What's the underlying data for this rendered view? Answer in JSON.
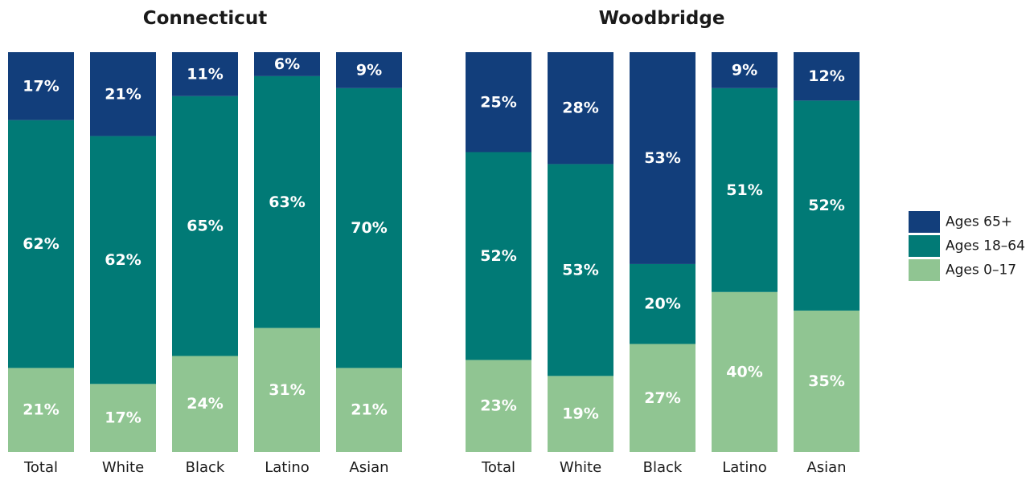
{
  "colors": {
    "ages_65_plus": "#123e7b",
    "ages_18_64": "#017a76",
    "ages_0_17": "#90c592"
  },
  "chart_data": [
    {
      "type": "bar",
      "stacked": true,
      "title": "Connecticut",
      "categories": [
        "Total",
        "White",
        "Black",
        "Latino",
        "Asian"
      ],
      "series": [
        {
          "name": "Ages 0–17",
          "values": [
            21,
            17,
            24,
            31,
            21
          ],
          "labels": [
            "21%",
            "17%",
            "24%",
            "31%",
            "21%"
          ]
        },
        {
          "name": "Ages 18–64",
          "values": [
            62,
            62,
            65,
            63,
            70
          ],
          "labels": [
            "62%",
            "62%",
            "65%",
            "63%",
            "70%"
          ]
        },
        {
          "name": "Ages 65+",
          "values": [
            17,
            21,
            11,
            6,
            9
          ],
          "labels": [
            "17%",
            "21%",
            "11%",
            "6%",
            "9%"
          ]
        }
      ],
      "ylim": [
        0,
        100
      ]
    },
    {
      "type": "bar",
      "stacked": true,
      "title": "Woodbridge",
      "categories": [
        "Total",
        "White",
        "Black",
        "Latino",
        "Asian"
      ],
      "series": [
        {
          "name": "Ages 0–17",
          "values": [
            23,
            19,
            27,
            40,
            35
          ],
          "labels": [
            "23%",
            "19%",
            "27%",
            "40%",
            "35%"
          ]
        },
        {
          "name": "Ages 18–64",
          "values": [
            52,
            53,
            20,
            51,
            52
          ],
          "labels": [
            "52%",
            "53%",
            "20%",
            "51%",
            "52%"
          ]
        },
        {
          "name": "Ages 65+",
          "values": [
            25,
            28,
            53,
            9,
            12
          ],
          "labels": [
            "25%",
            "28%",
            "53%",
            "9%",
            "12%"
          ]
        }
      ],
      "ylim": [
        0,
        100
      ]
    }
  ],
  "legend": {
    "position": "right",
    "items": [
      {
        "label": "Ages 65+",
        "color_key": "ages_65_plus"
      },
      {
        "label": "Ages 18–64",
        "color_key": "ages_18_64"
      },
      {
        "label": "Ages 0–17",
        "color_key": "ages_0_17"
      }
    ]
  }
}
